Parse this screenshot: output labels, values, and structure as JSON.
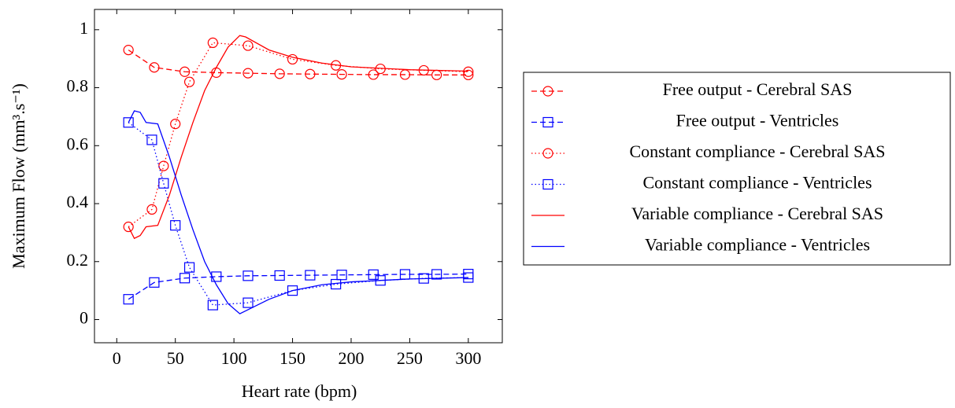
{
  "chart_data": {
    "type": "line",
    "xlabel": "Heart rate (bpm)",
    "ylabel": "Maximum Flow (mm³.s⁻¹)",
    "xlim": [
      -19,
      329
    ],
    "ylim": [
      -0.08,
      1.07
    ],
    "xticks": [
      0,
      50,
      100,
      150,
      200,
      250,
      300
    ],
    "yticks": [
      0,
      0.2,
      0.4,
      0.6,
      0.8,
      1
    ],
    "grid": false,
    "legend": "right",
    "series": [
      {
        "name": "Free output - Cerebral SAS",
        "color": "#ff0000",
        "style": "dashed",
        "marker": "circle",
        "x": [
          10,
          32,
          58,
          85,
          112,
          139,
          165,
          192,
          219,
          246,
          273,
          300
        ],
        "values": [
          0.93,
          0.87,
          0.855,
          0.852,
          0.85,
          0.848,
          0.847,
          0.846,
          0.845,
          0.845,
          0.844,
          0.844
        ]
      },
      {
        "name": "Free output - Ventricles",
        "color": "#0000ff",
        "style": "dashed",
        "marker": "square",
        "x": [
          10,
          32,
          58,
          85,
          112,
          139,
          165,
          192,
          219,
          246,
          273,
          300
        ],
        "values": [
          0.07,
          0.128,
          0.143,
          0.148,
          0.151,
          0.152,
          0.153,
          0.154,
          0.155,
          0.156,
          0.156,
          0.157
        ]
      },
      {
        "name": "Constant compliance - Cerebral SAS",
        "color": "#ff0000",
        "style": "dotted",
        "marker": "circle",
        "x": [
          10,
          30,
          40,
          50,
          62,
          82,
          112,
          150,
          187,
          225,
          262,
          300
        ],
        "values": [
          0.32,
          0.38,
          0.53,
          0.675,
          0.82,
          0.955,
          0.945,
          0.898,
          0.877,
          0.865,
          0.86,
          0.855
        ]
      },
      {
        "name": "Constant compliance - Ventricles",
        "color": "#0000ff",
        "style": "dotted",
        "marker": "square",
        "x": [
          10,
          30,
          40,
          50,
          62,
          82,
          112,
          150,
          187,
          225,
          262,
          300
        ],
        "values": [
          0.68,
          0.62,
          0.47,
          0.325,
          0.18,
          0.05,
          0.058,
          0.1,
          0.122,
          0.135,
          0.142,
          0.145
        ]
      },
      {
        "name": "Variable compliance - Cerebral SAS",
        "color": "#ff0000",
        "style": "solid",
        "marker": "none",
        "x": [
          10,
          15,
          20,
          25,
          35,
          45,
          55,
          65,
          75,
          85,
          95,
          105,
          110,
          130,
          150,
          175,
          200,
          250,
          300
        ],
        "values": [
          0.32,
          0.28,
          0.29,
          0.32,
          0.325,
          0.43,
          0.56,
          0.68,
          0.79,
          0.87,
          0.94,
          0.98,
          0.975,
          0.93,
          0.905,
          0.885,
          0.872,
          0.862,
          0.857
        ]
      },
      {
        "name": "Variable compliance - Ventricles",
        "color": "#0000ff",
        "style": "solid",
        "marker": "none",
        "x": [
          10,
          15,
          20,
          25,
          35,
          45,
          55,
          65,
          75,
          85,
          95,
          105,
          110,
          130,
          150,
          175,
          200,
          250,
          300
        ],
        "values": [
          0.68,
          0.72,
          0.715,
          0.68,
          0.675,
          0.56,
          0.43,
          0.31,
          0.2,
          0.12,
          0.055,
          0.02,
          0.03,
          0.07,
          0.1,
          0.12,
          0.13,
          0.14,
          0.145
        ]
      }
    ]
  }
}
